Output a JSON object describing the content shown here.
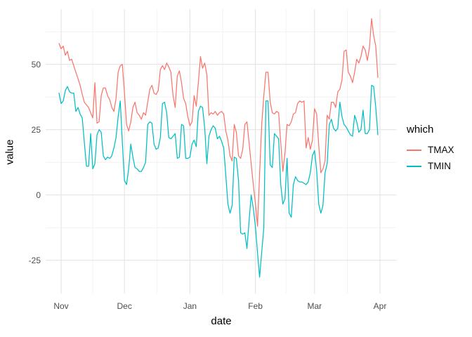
{
  "chart_data": {
    "type": "line",
    "title": "",
    "xlabel": "date",
    "ylabel": "value",
    "x_unit_note": "daily observations, x measured in days since Oct 31",
    "x_ticks": [
      {
        "label": "Nov",
        "day": 1
      },
      {
        "label": "Dec",
        "day": 31
      },
      {
        "label": "Jan",
        "day": 62
      },
      {
        "label": "Feb",
        "day": 93
      },
      {
        "label": "Mar",
        "day": 121
      },
      {
        "label": "Apr",
        "day": 152
      }
    ],
    "x_minor_days": [
      16,
      46.5,
      77.5,
      107.5,
      136.5
    ],
    "y_ticks": [
      {
        "label": "50",
        "value": 50
      },
      {
        "label": "25",
        "value": 25
      },
      {
        "label": "0",
        "value": 0
      },
      {
        "label": "-25",
        "value": -25
      }
    ],
    "y_minor_values": [
      62.5,
      37.5,
      12.5,
      -12.5
    ],
    "ylim": [
      -36,
      71
    ],
    "grid": "major and minor light-gray gridlines on white panel",
    "legend": {
      "title": "which",
      "position": "right"
    },
    "colors": {
      "background": "#FFFFFF",
      "grid_major": "#E4E4E4",
      "grid_minor": "#EFEFEF",
      "axis_text": "#4D4D4D",
      "title_text": "#000000"
    },
    "series": [
      {
        "name": "TMAX",
        "color": "#F8766D",
        "values": [
          58,
          56,
          57,
          53.5,
          55,
          51.5,
          52,
          49.5,
          47,
          44.5,
          42,
          38.5,
          35.5,
          34.5,
          33.5,
          31.5,
          29.5,
          43,
          27.5,
          28,
          38,
          41,
          41,
          38,
          36.5,
          33.5,
          32,
          37,
          47,
          49.5,
          50,
          39,
          27,
          24.5,
          28,
          33.5,
          35.5,
          31.5,
          30.5,
          29,
          31.5,
          30.5,
          35.5,
          40.5,
          42,
          39,
          38.5,
          40,
          48,
          49.5,
          48,
          50.5,
          49,
          47,
          38,
          33.5,
          45.5,
          47.5,
          43,
          37,
          35,
          30,
          26.5,
          28,
          38,
          34,
          43,
          53,
          48.5,
          50.5,
          46,
          30.5,
          31.5,
          31,
          32,
          30.5,
          31.5,
          32,
          31,
          24.5,
          21,
          15,
          13,
          27,
          24,
          15,
          14,
          17.5,
          27,
          28,
          20,
          12,
          4,
          -3,
          -12,
          8,
          27,
          38,
          47,
          47,
          35.5,
          31.5,
          31,
          32,
          31.5,
          20,
          9,
          16,
          27,
          26.5,
          28,
          31,
          31.5,
          35,
          36,
          35.5,
          36,
          18,
          22,
          17.5,
          21,
          33,
          31,
          19,
          8.5,
          10,
          13,
          30.5,
          29,
          35.5,
          35.5,
          33.5,
          39.5,
          40.5,
          44,
          55,
          55.5,
          47,
          45.5,
          43,
          47,
          52,
          50.5,
          53,
          57,
          55.5,
          51.5,
          56.5,
          67.5,
          61,
          57,
          45
        ]
      },
      {
        "name": "TMIN",
        "color": "#00BFC4",
        "values": [
          39,
          35,
          36,
          40,
          41.5,
          39.5,
          39,
          39,
          32,
          33.5,
          31,
          29.5,
          20,
          11,
          11,
          23.5,
          10,
          12,
          23,
          25,
          24,
          15,
          13.5,
          14.5,
          14,
          15,
          18,
          22,
          30,
          36,
          20,
          5.5,
          4,
          10,
          19.5,
          14.5,
          10.5,
          10,
          9,
          9,
          10.5,
          12.5,
          27,
          28,
          27.5,
          19.5,
          17.5,
          18,
          22,
          35,
          35.5,
          31.5,
          22,
          21.5,
          22.5,
          23.5,
          14,
          14.5,
          27,
          26.5,
          14,
          14,
          14.5,
          19.5,
          21,
          18.5,
          32,
          34,
          33.5,
          25.5,
          12,
          22.5,
          25,
          26.5,
          25.5,
          21.5,
          22.5,
          20.5,
          18,
          7.5,
          -3.5,
          -7,
          -4,
          14.5,
          14,
          5.5,
          -14.5,
          -15,
          -14.5,
          -20.5,
          -10,
          0,
          -5,
          -12,
          -22,
          -31.5,
          -22,
          -12.5,
          36,
          36,
          11.5,
          10.5,
          23.5,
          22.5,
          21.5,
          4,
          -3.5,
          -1.5,
          14,
          -7,
          -8.5,
          4,
          7,
          5.5,
          5,
          5,
          4.5,
          4,
          5,
          8.5,
          15,
          17,
          9.5,
          -3.5,
          -7,
          -4,
          8.5,
          12,
          27,
          29,
          25.5,
          24.5,
          25.5,
          35.5,
          30,
          27,
          26,
          24.5,
          23,
          22.5,
          30.5,
          28,
          24,
          25,
          32.5,
          23.5,
          23.5,
          25,
          42,
          41.5,
          33.5,
          23
        ]
      }
    ]
  }
}
